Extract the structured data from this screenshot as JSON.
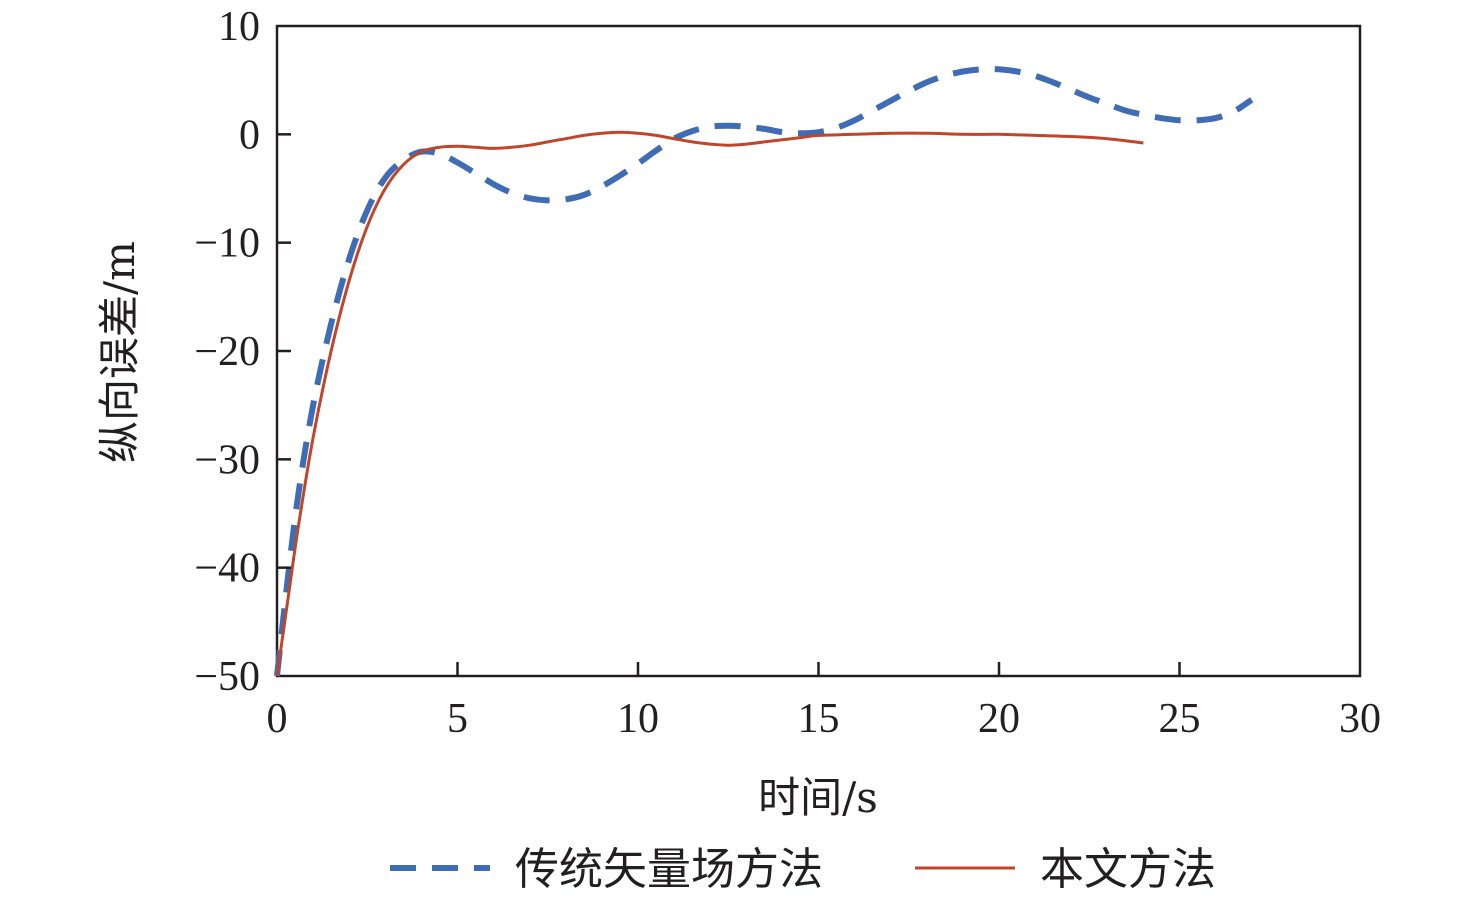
{
  "chart_data": {
    "type": "line",
    "xlabel": "时间/s",
    "ylabel": "纵向误差/m",
    "xlim": [
      0,
      30
    ],
    "ylim": [
      -50,
      10
    ],
    "xticks": [
      0,
      5,
      10,
      15,
      20,
      25,
      30
    ],
    "yticks": [
      10,
      0,
      -10,
      -20,
      -30,
      -40,
      -50
    ],
    "ytick_labels": [
      "10",
      "0",
      "−10",
      "−20",
      "−30",
      "−40",
      "−50"
    ],
    "grid": false,
    "legend_position": "bottom",
    "series": [
      {
        "name": "传统矢量场方法",
        "color": "#3e6db5",
        "dash": "dashed",
        "points": [
          [
            0,
            -50
          ],
          [
            0.3,
            -41
          ],
          [
            0.6,
            -33
          ],
          [
            1,
            -25
          ],
          [
            1.5,
            -17.5
          ],
          [
            2,
            -11.5
          ],
          [
            2.5,
            -7
          ],
          [
            3,
            -4
          ],
          [
            3.5,
            -2.4
          ],
          [
            4,
            -1.6
          ],
          [
            4.5,
            -1.8
          ],
          [
            5,
            -2.6
          ],
          [
            5.5,
            -3.6
          ],
          [
            6,
            -4.6
          ],
          [
            6.5,
            -5.4
          ],
          [
            7,
            -5.9
          ],
          [
            7.5,
            -6.1
          ],
          [
            8,
            -6.0
          ],
          [
            8.5,
            -5.6
          ],
          [
            9,
            -4.8
          ],
          [
            9.5,
            -3.8
          ],
          [
            10,
            -2.7
          ],
          [
            10.5,
            -1.5
          ],
          [
            11,
            -0.4
          ],
          [
            11.5,
            0.3
          ],
          [
            12,
            0.7
          ],
          [
            12.5,
            0.8
          ],
          [
            13,
            0.7
          ],
          [
            13.5,
            0.5
          ],
          [
            14,
            0.2
          ],
          [
            14.5,
            0.1
          ],
          [
            15,
            0.2
          ],
          [
            15.5,
            0.6
          ],
          [
            16,
            1.3
          ],
          [
            16.5,
            2.2
          ],
          [
            17,
            3.1
          ],
          [
            17.5,
            4.0
          ],
          [
            18,
            4.8
          ],
          [
            18.5,
            5.4
          ],
          [
            19,
            5.8
          ],
          [
            19.5,
            6.0
          ],
          [
            20,
            6.0
          ],
          [
            20.5,
            5.8
          ],
          [
            21,
            5.4
          ],
          [
            21.5,
            4.8
          ],
          [
            22,
            4.1
          ],
          [
            22.5,
            3.4
          ],
          [
            23,
            2.8
          ],
          [
            23.5,
            2.2
          ],
          [
            24,
            1.8
          ],
          [
            24.5,
            1.5
          ],
          [
            25,
            1.3
          ],
          [
            25.5,
            1.3
          ],
          [
            26,
            1.5
          ],
          [
            26.5,
            2.1
          ],
          [
            27,
            3.2
          ]
        ]
      },
      {
        "name": "本文方法",
        "color": "#c0462b",
        "dash": "solid",
        "points": [
          [
            0,
            -50
          ],
          [
            0.3,
            -43
          ],
          [
            0.6,
            -36
          ],
          [
            1,
            -28
          ],
          [
            1.5,
            -20
          ],
          [
            2,
            -13.5
          ],
          [
            2.5,
            -8.5
          ],
          [
            3,
            -5
          ],
          [
            3.5,
            -2.8
          ],
          [
            4,
            -1.6
          ],
          [
            4.5,
            -1.2
          ],
          [
            5,
            -1.1
          ],
          [
            5.5,
            -1.2
          ],
          [
            6,
            -1.3
          ],
          [
            6.5,
            -1.2
          ],
          [
            7,
            -1.0
          ],
          [
            7.5,
            -0.7
          ],
          [
            8,
            -0.4
          ],
          [
            8.5,
            -0.1
          ],
          [
            9,
            0.1
          ],
          [
            9.5,
            0.2
          ],
          [
            10,
            0.1
          ],
          [
            10.5,
            -0.1
          ],
          [
            11,
            -0.4
          ],
          [
            11.5,
            -0.7
          ],
          [
            12,
            -0.9
          ],
          [
            12.5,
            -1.0
          ],
          [
            13,
            -0.9
          ],
          [
            13.5,
            -0.7
          ],
          [
            14,
            -0.5
          ],
          [
            14.5,
            -0.3
          ],
          [
            15,
            -0.1
          ],
          [
            16,
            0.0
          ],
          [
            17,
            0.1
          ],
          [
            18,
            0.1
          ],
          [
            19,
            0.0
          ],
          [
            20,
            0.0
          ],
          [
            21,
            -0.1
          ],
          [
            22,
            -0.2
          ],
          [
            23,
            -0.4
          ],
          [
            24,
            -0.8
          ]
        ]
      }
    ]
  }
}
